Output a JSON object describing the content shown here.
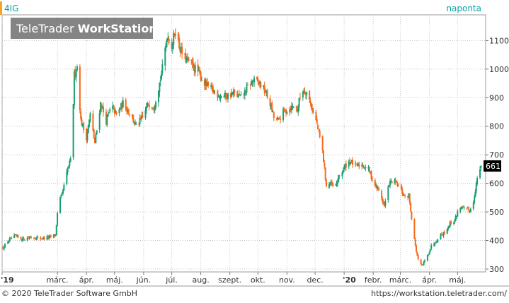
{
  "header": {
    "symbol": "4IG",
    "interval": "naponta"
  },
  "watermark": {
    "brand_light": "TeleTrader",
    "brand_bold": "WorkStation"
  },
  "footer": {
    "copyright": "© 2020 TeleTrader Software GmbH",
    "url": "https://workstation.teletrader.com/"
  },
  "colors": {
    "up": "#1a9e6e",
    "down": "#f26b1d",
    "accent": "#f5a623",
    "title": "#00a6a6",
    "grid": "#c8c8c8",
    "last_price_bg": "#000000"
  },
  "chart_data": {
    "type": "candlestick",
    "x_start": "2019-01-01",
    "x_end": "2020-05-31",
    "ylim": [
      290,
      1190
    ],
    "y_ticks": [
      300,
      400,
      500,
      600,
      700,
      800,
      900,
      1000,
      1100
    ],
    "y_scale": "linear",
    "grid": true,
    "last_price_label": "661",
    "last_price": 661,
    "x_tick_labels": [
      {
        "label": "'19",
        "date": "2019-01-01",
        "bold": true
      },
      {
        "label": "márc.",
        "date": "2019-03-01"
      },
      {
        "label": "ápr.",
        "date": "2019-04-01"
      },
      {
        "label": "máj.",
        "date": "2019-05-01"
      },
      {
        "label": "jún.",
        "date": "2019-06-01"
      },
      {
        "label": "júl.",
        "date": "2019-07-01"
      },
      {
        "label": "aug.",
        "date": "2019-08-01"
      },
      {
        "label": "szept.",
        "date": "2019-09-01"
      },
      {
        "label": "okt.",
        "date": "2019-10-01"
      },
      {
        "label": "nov.",
        "date": "2019-11-01"
      },
      {
        "label": "dec.",
        "date": "2019-12-01"
      },
      {
        "label": "'20",
        "date": "2020-01-01",
        "bold": true
      },
      {
        "label": "febr.",
        "date": "2020-02-01"
      },
      {
        "label": "márc.",
        "date": "2020-03-01"
      },
      {
        "label": "ápr.",
        "date": "2020-04-01"
      },
      {
        "label": "máj.",
        "date": "2020-05-01"
      }
    ],
    "price_path": [
      [
        "2019-01-02",
        375
      ],
      [
        "2019-01-08",
        400
      ],
      [
        "2019-01-15",
        415
      ],
      [
        "2019-01-22",
        405
      ],
      [
        "2019-02-01",
        412
      ],
      [
        "2019-02-10",
        408
      ],
      [
        "2019-02-20",
        410
      ],
      [
        "2019-02-27",
        420
      ],
      [
        "2019-03-02",
        530
      ],
      [
        "2019-03-06",
        560
      ],
      [
        "2019-03-12",
        650
      ],
      [
        "2019-03-16",
        690
      ],
      [
        "2019-03-19",
        980
      ],
      [
        "2019-03-22",
        1010
      ],
      [
        "2019-03-26",
        820
      ],
      [
        "2019-04-01",
        760
      ],
      [
        "2019-04-05",
        840
      ],
      [
        "2019-04-10",
        740
      ],
      [
        "2019-04-16",
        880
      ],
      [
        "2019-04-22",
        820
      ],
      [
        "2019-04-28",
        870
      ],
      [
        "2019-05-03",
        840
      ],
      [
        "2019-05-10",
        880
      ],
      [
        "2019-05-17",
        850
      ],
      [
        "2019-05-24",
        800
      ],
      [
        "2019-05-31",
        830
      ],
      [
        "2019-06-06",
        880
      ],
      [
        "2019-06-12",
        870
      ],
      [
        "2019-06-18",
        950
      ],
      [
        "2019-06-22",
        1020
      ],
      [
        "2019-06-26",
        1120
      ],
      [
        "2019-07-01",
        1080
      ],
      [
        "2019-07-05",
        1140
      ],
      [
        "2019-07-09",
        1080
      ],
      [
        "2019-07-14",
        1040
      ],
      [
        "2019-07-21",
        1020
      ],
      [
        "2019-07-29",
        990
      ],
      [
        "2019-08-05",
        950
      ],
      [
        "2019-08-12",
        930
      ],
      [
        "2019-08-20",
        910
      ],
      [
        "2019-08-28",
        905
      ],
      [
        "2019-09-05",
        915
      ],
      [
        "2019-09-13",
        900
      ],
      [
        "2019-09-21",
        940
      ],
      [
        "2019-09-26",
        960
      ],
      [
        "2019-10-03",
        950
      ],
      [
        "2019-10-09",
        920
      ],
      [
        "2019-10-14",
        880
      ],
      [
        "2019-10-18",
        830
      ],
      [
        "2019-10-23",
        820
      ],
      [
        "2019-10-28",
        850
      ],
      [
        "2019-11-02",
        860
      ],
      [
        "2019-11-08",
        870
      ],
      [
        "2019-11-12",
        860
      ],
      [
        "2019-11-17",
        930
      ],
      [
        "2019-11-22",
        920
      ],
      [
        "2019-11-27",
        870
      ],
      [
        "2019-12-02",
        820
      ],
      [
        "2019-12-06",
        760
      ],
      [
        "2019-12-09",
        710
      ],
      [
        "2019-12-13",
        590
      ],
      [
        "2019-12-17",
        600
      ],
      [
        "2019-12-22",
        580
      ],
      [
        "2019-12-26",
        620
      ],
      [
        "2020-01-02",
        660
      ],
      [
        "2020-01-07",
        680
      ],
      [
        "2020-01-13",
        660
      ],
      [
        "2020-01-20",
        665
      ],
      [
        "2020-01-27",
        650
      ],
      [
        "2020-02-02",
        600
      ],
      [
        "2020-02-08",
        570
      ],
      [
        "2020-02-13",
        520
      ],
      [
        "2020-02-18",
        600
      ],
      [
        "2020-02-23",
        610
      ],
      [
        "2020-03-01",
        580
      ],
      [
        "2020-03-06",
        550
      ],
      [
        "2020-03-10",
        560
      ],
      [
        "2020-03-13",
        480
      ],
      [
        "2020-03-17",
        380
      ],
      [
        "2020-03-20",
        330
      ],
      [
        "2020-03-24",
        310
      ],
      [
        "2020-03-29",
        340
      ],
      [
        "2020-04-03",
        380
      ],
      [
        "2020-04-08",
        400
      ],
      [
        "2020-04-13",
        420
      ],
      [
        "2020-04-18",
        430
      ],
      [
        "2020-04-23",
        460
      ],
      [
        "2020-04-28",
        470
      ],
      [
        "2020-05-03",
        520
      ],
      [
        "2020-05-08",
        510
      ],
      [
        "2020-05-13",
        505
      ],
      [
        "2020-05-17",
        515
      ],
      [
        "2020-05-21",
        600
      ],
      [
        "2020-05-24",
        640
      ],
      [
        "2020-05-26",
        661
      ]
    ]
  }
}
